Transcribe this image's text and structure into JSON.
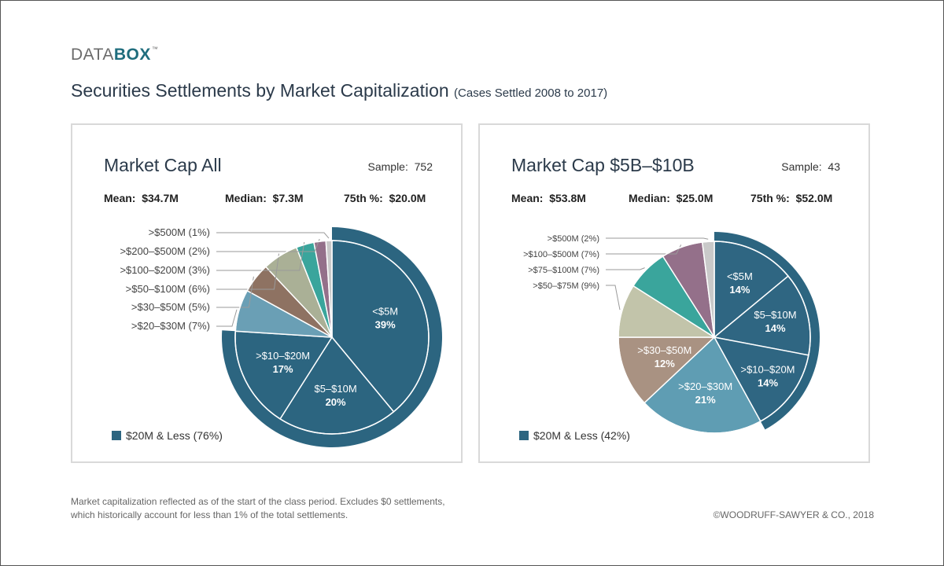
{
  "brand": {
    "part1": "DATA",
    "part2": "BOX",
    "tm": "™"
  },
  "header": {
    "title": "Securities Settlements by Market Capitalization",
    "subtitle": "(Cases Settled 2008 to 2017)"
  },
  "footer": {
    "note_line1": "Market capitalization reflected as of the start of the class period. Excludes $0 settlements,",
    "note_line2": "which historically account for less than 1% of the total settlements.",
    "copyright": "©WOODRUFF-SAWYER & CO., 2018"
  },
  "colors": {
    "dark_blue": "#2c6580",
    "light_blue": "#5f9db3",
    "brown": "#8e7262",
    "tan": "#aab096",
    "teal": "#3aa59c",
    "mauve": "#94708a",
    "grey": "#c9c9c9",
    "beige": "#a99282",
    "sage": "#c2c4aa",
    "blue2": "#2f6682"
  },
  "chart_data": [
    {
      "type": "pie",
      "title": "Market Cap All",
      "sample_label": "Sample:",
      "sample": "752",
      "stats": [
        {
          "label": "Mean:",
          "value": "$34.7M"
        },
        {
          "label": "Median:",
          "value": "$7.3M"
        },
        {
          "label": "75th %:",
          "value": "$20.0M"
        }
      ],
      "slices": [
        {
          "label": "<$5M",
          "value": 39,
          "pct": "39%",
          "color": "#2c6580"
        },
        {
          "label": "$5–$10M",
          "value": 20,
          "pct": "20%",
          "color": "#2c6580"
        },
        {
          "label": ">$10–$20M",
          "value": 17,
          "pct": "17%",
          "color": "#2c6580"
        },
        {
          "label": ">$20–$30M (7%)",
          "value": 7,
          "color": "#6a9fb5"
        },
        {
          "label": ">$30–$50M (5%)",
          "value": 5,
          "color": "#8e7262"
        },
        {
          "label": ">$50–$100M (6%)",
          "value": 6,
          "color": "#aab096"
        },
        {
          "label": ">$100–$200M (3%)",
          "value": 3,
          "color": "#3aa59c"
        },
        {
          "label": ">$200–$500M (2%)",
          "value": 2,
          "color": "#94708a"
        },
        {
          "label": ">$500M (1%)",
          "value": 1,
          "color": "#c9c9c9"
        }
      ],
      "legend": "$20M & Less (76%)"
    },
    {
      "type": "pie",
      "title": "Market Cap $5B–$10B",
      "sample_label": "Sample:",
      "sample": "43",
      "stats": [
        {
          "label": "Mean:",
          "value": "$53.8M"
        },
        {
          "label": "Median:",
          "value": "$25.0M"
        },
        {
          "label": "75th %:",
          "value": "$52.0M"
        }
      ],
      "slices": [
        {
          "label": "<$5M",
          "value": 14,
          "pct": "14%",
          "color": "#2f6682"
        },
        {
          "label": "$5–$10M",
          "value": 14,
          "pct": "14%",
          "color": "#2f6682"
        },
        {
          "label": ">$10–$20M",
          "value": 14,
          "pct": "14%",
          "color": "#2f6682"
        },
        {
          "label": ">$20–$30M",
          "value": 21,
          "pct": "21%",
          "color": "#5f9db3"
        },
        {
          "label": ">$30–$50M",
          "value": 12,
          "pct": "12%",
          "color": "#a99282"
        },
        {
          "label": ">$50–$75M (9%)",
          "value": 9,
          "color": "#c2c4aa"
        },
        {
          "label": ">$75–$100M (7%)",
          "value": 7,
          "color": "#3aa59c"
        },
        {
          "label": ">$100–$500M (7%)",
          "value": 7,
          "color": "#94708a"
        },
        {
          "label": ">$500M (2%)",
          "value": 2,
          "color": "#c9c9c9"
        }
      ],
      "legend": "$20M & Less (42%)"
    }
  ]
}
